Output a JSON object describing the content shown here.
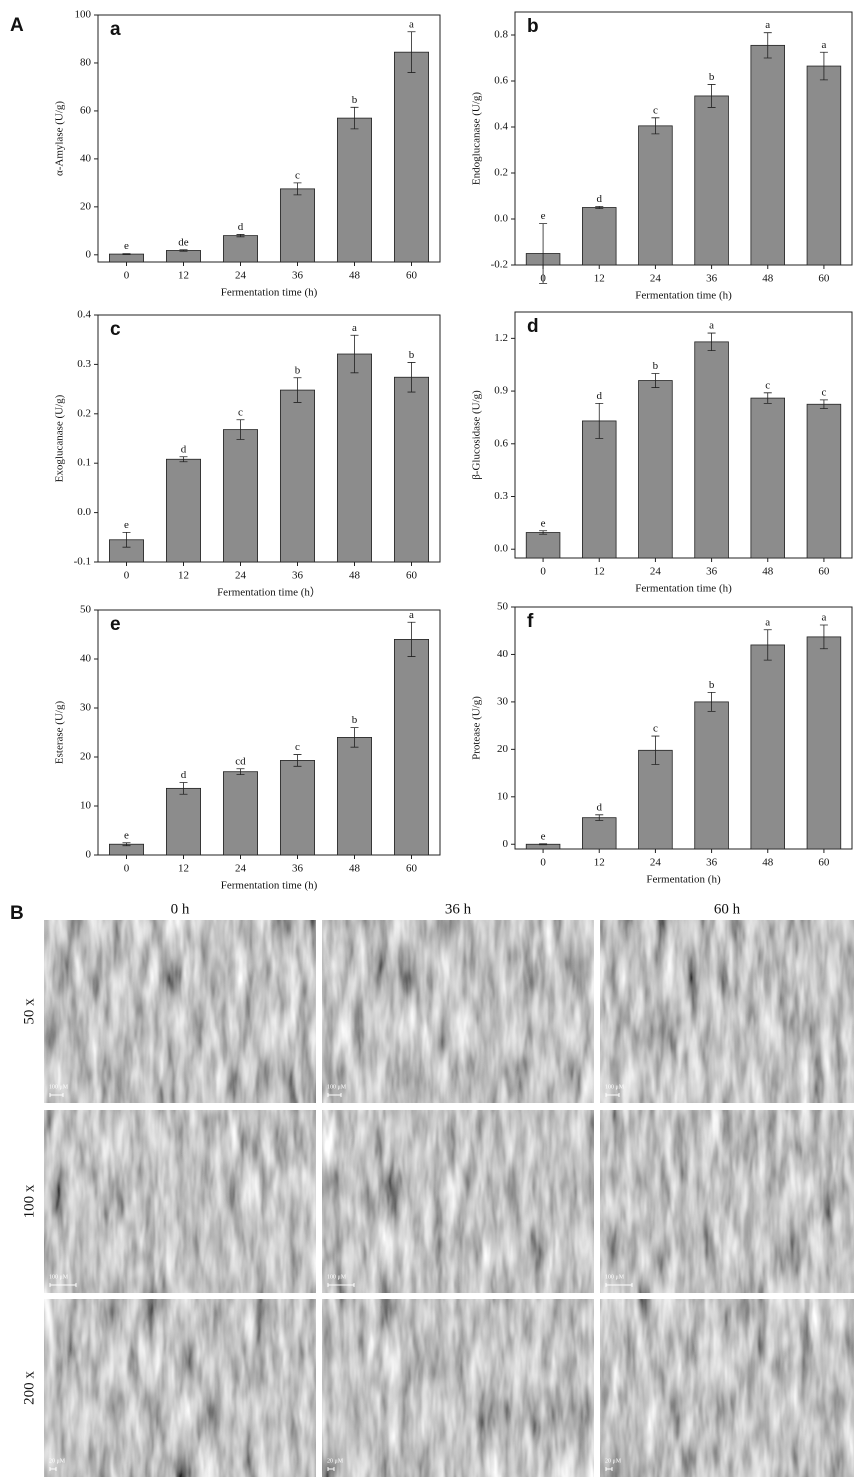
{
  "figure_a": {
    "label": "A"
  },
  "figure_b": {
    "label": "B",
    "columns": [
      "0 h",
      "36 h",
      "60 h"
    ],
    "rows": [
      "50 x",
      "100 x",
      "200 x"
    ],
    "scale_labels": [
      [
        "100 μM",
        "100 μM",
        "100 μM"
      ],
      [
        "100 μM",
        "100 μM",
        "100 μM"
      ],
      [
        "20 μM",
        "20 μM",
        "20 μM"
      ]
    ]
  },
  "chart_data": [
    {
      "type": "bar",
      "title": "a",
      "y_label": "α-Amylase (U/g)",
      "x_label": "Fermentation time (h)",
      "categories": [
        "0",
        "12",
        "24",
        "36",
        "48",
        "60"
      ],
      "values": [
        0.3,
        1.8,
        8,
        27.5,
        57,
        84.5
      ],
      "errors": [
        0.2,
        0.3,
        0.5,
        2.5,
        4.5,
        8.5
      ],
      "annotations": [
        "e",
        "de",
        "d",
        "c",
        "b",
        "a"
      ],
      "color": "#8c8c8c",
      "ylim": [
        -3,
        100
      ],
      "yticks": [
        0,
        20,
        40,
        60,
        80,
        100
      ]
    },
    {
      "type": "bar",
      "title": "b",
      "y_label": "Endoglucanase (U/g)",
      "x_label": "Fermentation time (h)",
      "categories": [
        "0",
        "12",
        "24",
        "36",
        "48",
        "60"
      ],
      "values": [
        -0.15,
        0.05,
        0.405,
        0.535,
        0.755,
        0.665
      ],
      "errors": [
        0.13,
        0.005,
        0.035,
        0.05,
        0.055,
        0.06
      ],
      "annotations": [
        "e",
        "d",
        "c",
        "b",
        "a",
        "a"
      ],
      "color": "#8c8c8c",
      "ylim": [
        -0.2,
        0.9
      ],
      "yticks": [
        -0.2,
        {
          "value": 0,
          "label": "0.0"
        },
        0.2,
        0.4,
        0.6,
        0.8
      ]
    },
    {
      "type": "bar",
      "title": "c",
      "y_label": "Exoglucanase (U/g)",
      "x_label": "Fermentation time (h）",
      "categories": [
        "0",
        "12",
        "24",
        "36",
        "48",
        "60"
      ],
      "values": [
        -0.055,
        0.108,
        0.168,
        0.248,
        0.321,
        0.274
      ],
      "errors": [
        0.015,
        0.005,
        0.02,
        0.025,
        0.038,
        0.03
      ],
      "annotations": [
        "e",
        "d",
        "c",
        "b",
        "a",
        "b"
      ],
      "color": "#8c8c8c",
      "ylim": [
        -0.1,
        0.4
      ],
      "yticks": [
        -0.1,
        {
          "value": 0,
          "label": "0.0"
        },
        0.1,
        0.2,
        0.3,
        0.4
      ]
    },
    {
      "type": "bar",
      "title": "d",
      "y_label": "β-Glucosidase (U/g)",
      "x_label": "Fermentation time (h)",
      "categories": [
        "0",
        "12",
        "24",
        "36",
        "48",
        "60"
      ],
      "values": [
        0.095,
        0.73,
        0.96,
        1.18,
        0.86,
        0.825
      ],
      "errors": [
        0.01,
        0.1,
        0.04,
        0.05,
        0.03,
        0.025
      ],
      "annotations": [
        "e",
        "d",
        "b",
        "a",
        "c",
        "c"
      ],
      "color": "#8c8c8c",
      "ylim": [
        -0.05,
        1.35
      ],
      "yticks": [
        {
          "value": 0,
          "label": "0.0"
        },
        0.3,
        0.6,
        0.9,
        1.2
      ]
    },
    {
      "type": "bar",
      "title": "e",
      "y_label": "Esterase (U/g)",
      "x_label": "Fermentation time (h)",
      "categories": [
        "0",
        "12",
        "24",
        "36",
        "48",
        "60"
      ],
      "values": [
        2.2,
        13.6,
        17,
        19.3,
        24,
        44
      ],
      "errors": [
        0.3,
        1.2,
        0.6,
        1.2,
        2,
        3.5
      ],
      "annotations": [
        "e",
        "d",
        "cd",
        "c",
        "b",
        "a"
      ],
      "color": "#8c8c8c",
      "ylim": [
        0,
        50
      ],
      "yticks": [
        0,
        10,
        20,
        30,
        40,
        50
      ]
    },
    {
      "type": "bar",
      "title": "f",
      "y_label": "Protease (U/g)",
      "x_label": "Fermentation (h)",
      "categories": [
        "0",
        "12",
        "24",
        "36",
        "48",
        "60"
      ],
      "values": [
        0,
        5.6,
        19.8,
        30,
        42,
        43.7
      ],
      "errors": [
        0.1,
        0.6,
        3,
        2,
        3.2,
        2.5
      ],
      "annotations": [
        "e",
        "d",
        "c",
        "b",
        "a",
        "a"
      ],
      "color": "#8c8c8c",
      "ylim": [
        -1,
        50
      ],
      "yticks": [
        0,
        10,
        20,
        30,
        40,
        50
      ]
    }
  ]
}
